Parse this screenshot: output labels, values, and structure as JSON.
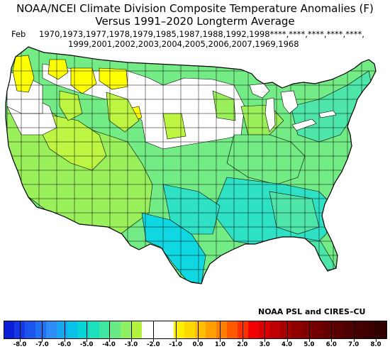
{
  "title": {
    "line1": "NOAA/NCEI Climate Division Composite Temperature Anomalies (F)",
    "line2": "Versus 1991–2020 Longterm Average"
  },
  "years": {
    "month": "Feb",
    "line1": "1970,1973,1977,1978,1979,1985,1987,1988,1992,1998****,****,****,****,****,",
    "line2": "1999,2001,2002,2003,2004,2005,2006,2007,1969,1968"
  },
  "credit": "NOAA PSL and CIRES–CU",
  "colorbar": {
    "colors": [
      "#0b2ad8",
      "#1450f0",
      "#1f6cf5",
      "#2d8ff5",
      "#1aa6f2",
      "#05c0ec",
      "#05d5d8",
      "#14e0b8",
      "#3ee6a0",
      "#6aeb80",
      "#8cee5c",
      "#b4f23c",
      "#ffffff",
      "#ffffff",
      "#fff400",
      "#ffdc00",
      "#ffc000",
      "#ffa200",
      "#ff8000",
      "#ff5a00",
      "#ff2800",
      "#f00000",
      "#d20000",
      "#b40000",
      "#960000",
      "#780000",
      "#5a0000",
      "#3c0000",
      "#7a1010",
      "#9a1a1a",
      "#8a1818",
      "#6e1010",
      "#521010",
      "#5a1a1a",
      "#401010",
      "#3a0e0e"
    ],
    "tick_labels": [
      "-8.0",
      "-7.0",
      "-6.0",
      "-5.0",
      "-4.0",
      "-3.0",
      "-2.0",
      "-1.0",
      "0.0",
      "1.0",
      "2.0",
      "3.0",
      "4.0",
      "5.0",
      "6.0",
      "7.0",
      "8.0"
    ],
    "tick_values": [
      -8,
      -7,
      -6,
      -5,
      -4,
      -3,
      -2,
      -1,
      0,
      1,
      2,
      3,
      4,
      5,
      6,
      7,
      8
    ]
  },
  "map_colors": {
    "neutral": "#ffffff",
    "yellow": "#ffff00",
    "light_green": "#bdf543",
    "green": "#9af05a",
    "mid_green": "#74ec86",
    "teal": "#4de6a8",
    "cyan_green": "#2ee0c4",
    "cyan": "#10d8e2",
    "outline": "#000000"
  }
}
